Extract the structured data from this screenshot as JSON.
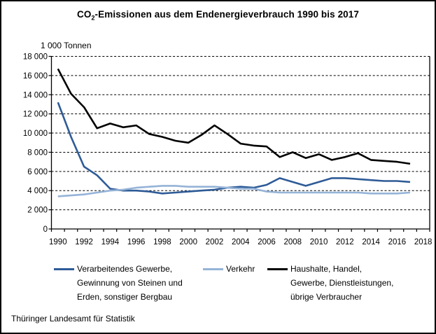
{
  "page": {
    "title": {
      "prefix": "CO",
      "subscript": "2",
      "suffix": "-Emissionen aus dem Endenergieverbrauch 1990 bis 2017"
    },
    "source": "Thüringer Landesamt für Statistik"
  },
  "chart_data": {
    "type": "line",
    "title": "CO2-Emissionen aus dem Endenergieverbrauch 1990 bis 2017",
    "unit_label": "1 000 Tonnen",
    "ylabel": "1 000 Tonnen",
    "xlabel": "",
    "ylim": [
      0,
      18000
    ],
    "y_tick_step": 2000,
    "grid": "horizontal-dashed",
    "legend_position": "bottom",
    "x": [
      1990,
      1991,
      1992,
      1993,
      1994,
      1995,
      1996,
      1997,
      1998,
      1999,
      2000,
      2001,
      2002,
      2003,
      2004,
      2005,
      2006,
      2007,
      2008,
      2009,
      2010,
      2011,
      2012,
      2013,
      2014,
      2015,
      2016,
      2017
    ],
    "x_tick_labels": [
      "1990",
      "1992",
      "1994",
      "1996",
      "1998",
      "2000",
      "2002",
      "2004",
      "2006",
      "2008",
      "2010",
      "2012",
      "2014",
      "2016",
      "2018"
    ],
    "y_tick_labels": [
      "0",
      "2 000",
      "4 000",
      "6 000",
      "8 000",
      "10 000",
      "12 000",
      "14 000",
      "16 000",
      "18 000"
    ],
    "series": [
      {
        "name": "Verarbeitendes Gewerbe,\nGewinnung von Steinen und\nErden, sonstiger Bergbau",
        "color": "#2E5B97",
        "values": [
          13200,
          9600,
          6500,
          5600,
          4200,
          4000,
          4000,
          3900,
          3700,
          3800,
          3900,
          4000,
          4100,
          4300,
          4400,
          4300,
          4600,
          5300,
          4900,
          4500,
          4900,
          5300,
          5300,
          5200,
          5100,
          5000,
          5000,
          4900
        ]
      },
      {
        "name": "Verkehr",
        "color": "#95B3D7",
        "values": [
          3400,
          3500,
          3600,
          3800,
          4000,
          4100,
          4300,
          4400,
          4500,
          4500,
          4400,
          4400,
          4400,
          4300,
          4200,
          4200,
          3900,
          3800,
          3800,
          3800,
          3800,
          3800,
          3800,
          3800,
          3700,
          3700,
          3700,
          3800
        ]
      },
      {
        "name": "Haushalte, Handel,\nGewerbe, Dienstleistungen,\nübrige Verbraucher",
        "color": "#000000",
        "values": [
          16700,
          14100,
          12700,
          10500,
          11000,
          10600,
          10800,
          9900,
          9600,
          9200,
          9000,
          9800,
          10800,
          9900,
          8900,
          8700,
          8600,
          7500,
          8000,
          7400,
          7800,
          7200,
          7500,
          7900,
          7200,
          7100,
          7000,
          6800
        ]
      }
    ]
  }
}
